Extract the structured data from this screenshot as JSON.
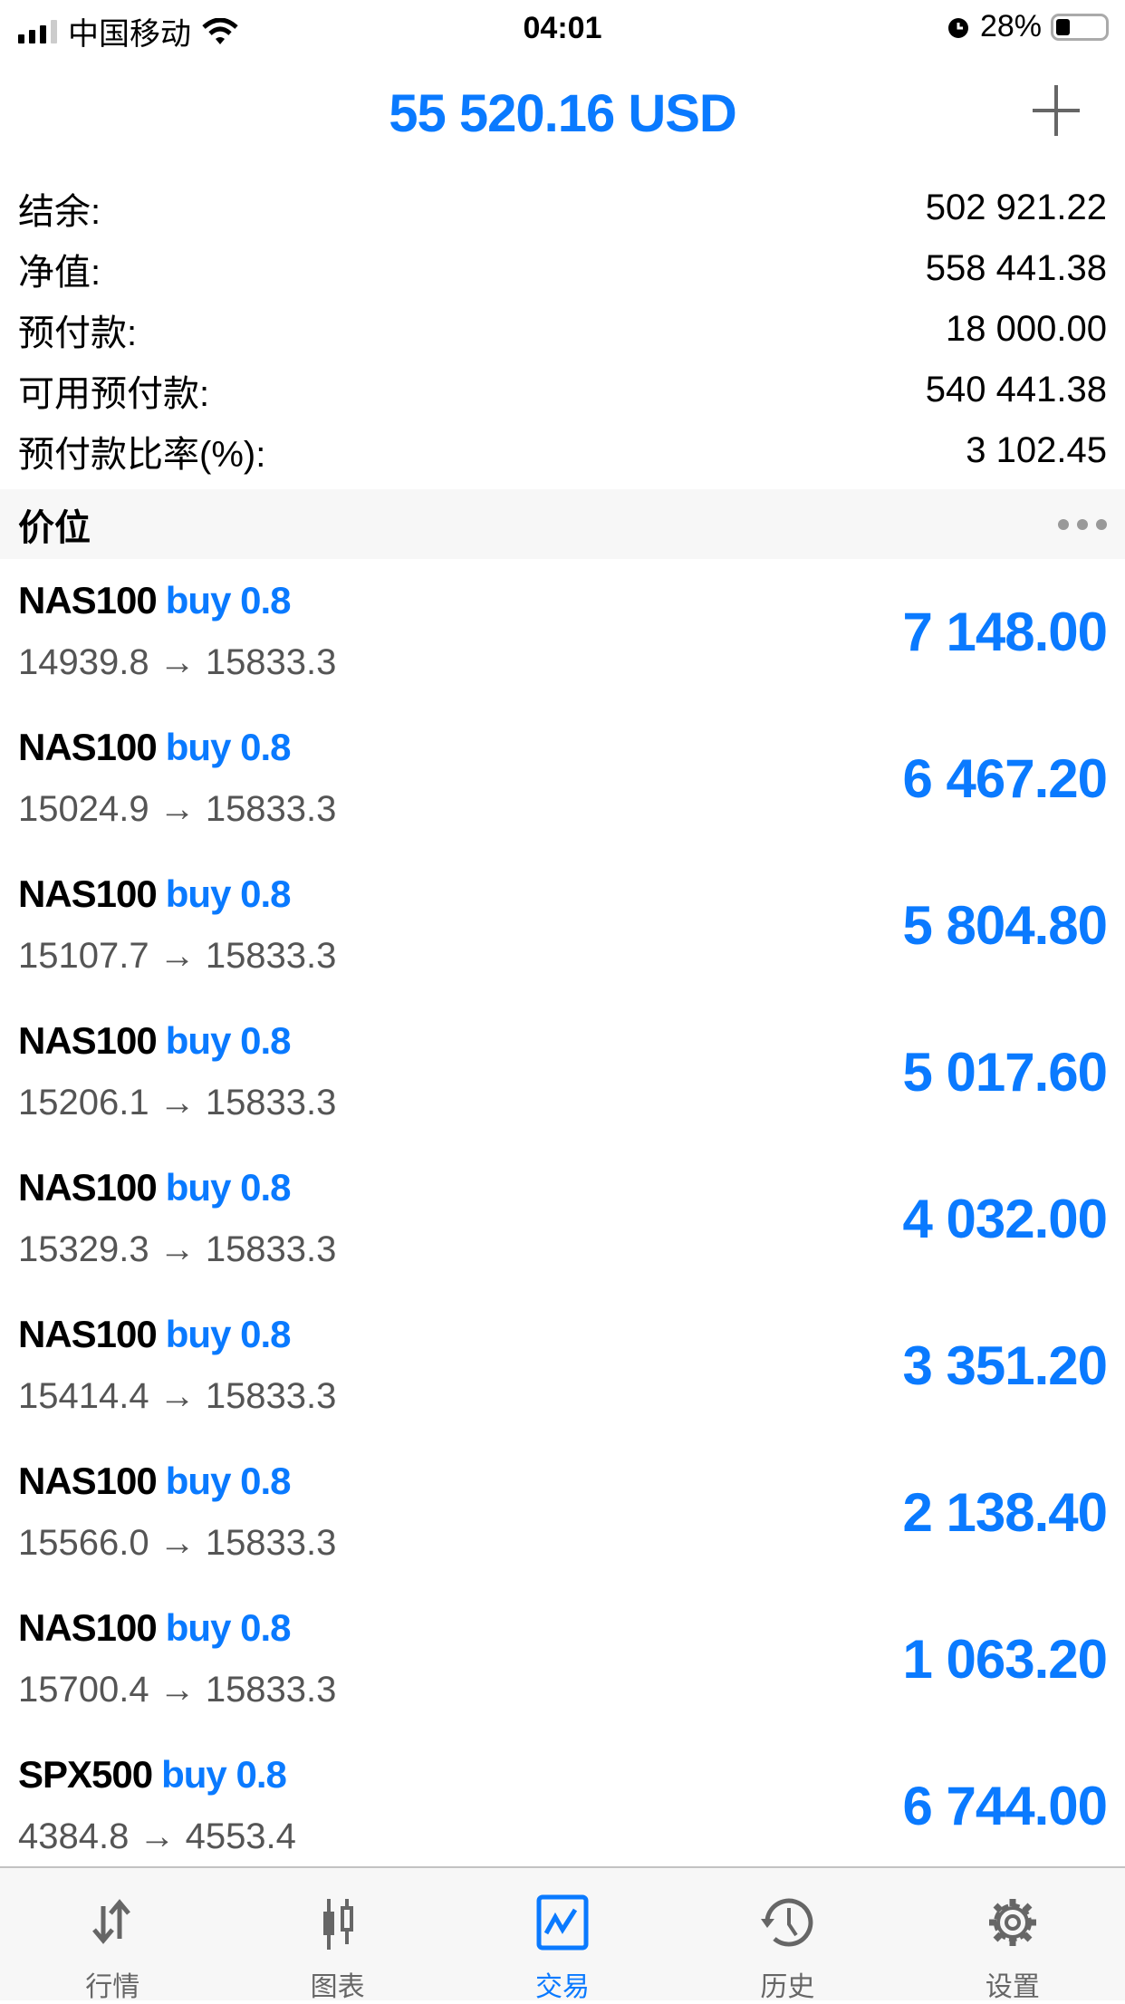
{
  "status": {
    "carrier": "中国移动",
    "time": "04:01",
    "battery": "28%",
    "battery_level": 0.28
  },
  "header": {
    "title": "55 520.16 USD"
  },
  "account": [
    {
      "label": "结余:",
      "value": "502 921.22"
    },
    {
      "label": "净值:",
      "value": "558 441.38"
    },
    {
      "label": "预付款:",
      "value": "18 000.00"
    },
    {
      "label": "可用预付款:",
      "value": "540 441.38"
    },
    {
      "label": "预付款比率(%):",
      "value": "3 102.45"
    }
  ],
  "section": {
    "title": "价位"
  },
  "positions": [
    {
      "symbol": "NAS100",
      "type": "buy 0.8",
      "prices": "14939.8 → 15833.3",
      "profit": "7 148.00"
    },
    {
      "symbol": "NAS100",
      "type": "buy 0.8",
      "prices": "15024.9 → 15833.3",
      "profit": "6 467.20"
    },
    {
      "symbol": "NAS100",
      "type": "buy 0.8",
      "prices": "15107.7 → 15833.3",
      "profit": "5 804.80"
    },
    {
      "symbol": "NAS100",
      "type": "buy 0.8",
      "prices": "15206.1 → 15833.3",
      "profit": "5 017.60"
    },
    {
      "symbol": "NAS100",
      "type": "buy 0.8",
      "prices": "15329.3 → 15833.3",
      "profit": "4 032.00"
    },
    {
      "symbol": "NAS100",
      "type": "buy 0.8",
      "prices": "15414.4 → 15833.3",
      "profit": "3 351.20"
    },
    {
      "symbol": "NAS100",
      "type": "buy 0.8",
      "prices": "15566.0 → 15833.3",
      "profit": "2 138.40"
    },
    {
      "symbol": "NAS100",
      "type": "buy 0.8",
      "prices": "15700.4 → 15833.3",
      "profit": "1 063.20"
    },
    {
      "symbol": "SPX500",
      "type": "buy 0.8",
      "prices": "4384.8 → 4553.4",
      "profit": "6 744.00"
    }
  ],
  "tabs": [
    {
      "label": "行情",
      "icon": "quotes-arrows-icon"
    },
    {
      "label": "图表",
      "icon": "candlestick-icon"
    },
    {
      "label": "交易",
      "icon": "trade-chart-icon",
      "active": true
    },
    {
      "label": "历史",
      "icon": "history-clock-icon"
    },
    {
      "label": "设置",
      "icon": "gear-icon"
    }
  ],
  "colors": {
    "accent": "#0a7aff",
    "tab_inactive": "#666666"
  }
}
